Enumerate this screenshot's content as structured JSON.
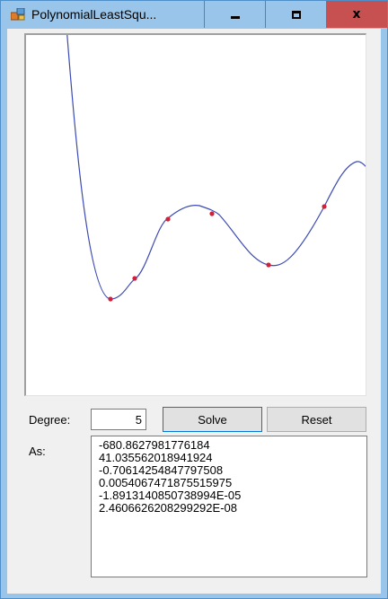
{
  "window": {
    "title": "PolynomialLeastSqu...",
    "minimize_glyph": "minimize-icon",
    "maximize_glyph": "maximize-icon",
    "close_glyph": "x",
    "titlebar_color": "#99c5ea",
    "close_color": "#c75050"
  },
  "form": {
    "degree_label": "Degree:",
    "degree_value": "5",
    "solve_label": "Solve",
    "reset_label": "Reset",
    "as_label": "As:",
    "coefficients": [
      "-680.8627981776184",
      "41.035562018941924",
      "-0.70614254847797508",
      "0.0054067471875515975",
      "-1.8913140850738994E-05",
      "2.4606626208299292E-08"
    ]
  },
  "plot": {
    "curve_color": "#3c4bb4",
    "point_color": "#d0203a"
  }
}
